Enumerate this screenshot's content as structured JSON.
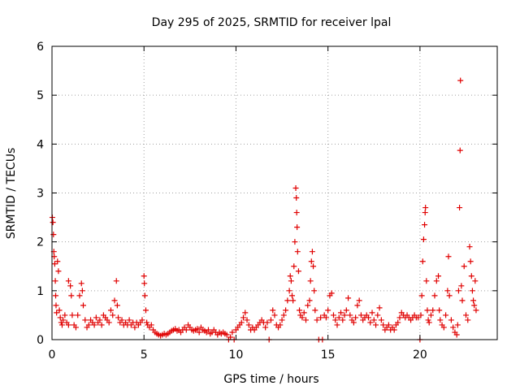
{
  "chart_data": {
    "type": "scatter",
    "title": "Day 295 of 2025, SRMTID for receiver lpal",
    "xlabel": "GPS time / hours",
    "ylabel": "SRMTID / TECUs",
    "xlim": [
      0,
      24.2
    ],
    "ylim": [
      0,
      6
    ],
    "xticks": [
      0,
      5,
      10,
      15,
      20
    ],
    "yticks": [
      0,
      1,
      2,
      3,
      4,
      5,
      6
    ],
    "grid": true,
    "marker": "+",
    "colors": {
      "series": "#e00000",
      "grid": "#a0a0a0",
      "axes": "#000000"
    },
    "series": [
      {
        "name": "SRMTID",
        "points": [
          [
            0.02,
            2.5
          ],
          [
            0.05,
            2.4
          ],
          [
            0.08,
            2.15
          ],
          [
            0.1,
            1.8
          ],
          [
            0.12,
            1.7
          ],
          [
            0.15,
            1.55
          ],
          [
            0.18,
            1.2
          ],
          [
            0.2,
            0.9
          ],
          [
            0.22,
            0.7
          ],
          [
            0.25,
            0.55
          ],
          [
            0.3,
            1.6
          ],
          [
            0.35,
            1.4
          ],
          [
            0.4,
            0.6
          ],
          [
            0.45,
            0.45
          ],
          [
            0.5,
            0.35
          ],
          [
            0.55,
            0.3
          ],
          [
            0.6,
            0.4
          ],
          [
            0.7,
            0.5
          ],
          [
            0.8,
            0.35
          ],
          [
            0.9,
            0.3
          ],
          [
            0.9,
            1.2
          ],
          [
            1.0,
            1.1
          ],
          [
            1.05,
            0.9
          ],
          [
            1.1,
            0.5
          ],
          [
            1.2,
            0.3
          ],
          [
            1.3,
            0.25
          ],
          [
            1.4,
            0.5
          ],
          [
            1.5,
            0.9
          ],
          [
            1.6,
            1.15
          ],
          [
            1.65,
            1.0
          ],
          [
            1.7,
            0.7
          ],
          [
            1.8,
            0.4
          ],
          [
            1.9,
            0.25
          ],
          [
            2.0,
            0.3
          ],
          [
            2.1,
            0.4
          ],
          [
            2.2,
            0.35
          ],
          [
            2.3,
            0.3
          ],
          [
            2.4,
            0.45
          ],
          [
            2.5,
            0.35
          ],
          [
            2.6,
            0.4
          ],
          [
            2.7,
            0.3
          ],
          [
            2.8,
            0.5
          ],
          [
            2.9,
            0.45
          ],
          [
            3.0,
            0.4
          ],
          [
            3.1,
            0.35
          ],
          [
            3.2,
            0.6
          ],
          [
            3.3,
            0.5
          ],
          [
            3.4,
            0.8
          ],
          [
            3.5,
            1.2
          ],
          [
            3.55,
            0.7
          ],
          [
            3.6,
            0.45
          ],
          [
            3.7,
            0.35
          ],
          [
            3.8,
            0.4
          ],
          [
            3.9,
            0.3
          ],
          [
            4.0,
            0.35
          ],
          [
            4.1,
            0.3
          ],
          [
            4.2,
            0.4
          ],
          [
            4.3,
            0.3
          ],
          [
            4.4,
            0.35
          ],
          [
            4.5,
            0.25
          ],
          [
            4.6,
            0.35
          ],
          [
            4.7,
            0.3
          ],
          [
            4.8,
            0.35
          ],
          [
            4.9,
            0.4
          ],
          [
            5.0,
            1.3
          ],
          [
            5.02,
            1.15
          ],
          [
            5.05,
            0.9
          ],
          [
            5.1,
            0.6
          ],
          [
            5.15,
            0.35
          ],
          [
            5.2,
            0.3
          ],
          [
            5.3,
            0.25
          ],
          [
            5.4,
            0.3
          ],
          [
            5.5,
            0.2
          ],
          [
            5.6,
            0.15
          ],
          [
            5.7,
            0.12
          ],
          [
            5.8,
            0.1
          ],
          [
            5.9,
            0.08
          ],
          [
            6.0,
            0.1
          ],
          [
            6.1,
            0.12
          ],
          [
            6.2,
            0.1
          ],
          [
            6.3,
            0.12
          ],
          [
            6.4,
            0.15
          ],
          [
            6.5,
            0.18
          ],
          [
            6.6,
            0.2
          ],
          [
            6.7,
            0.22
          ],
          [
            6.8,
            0.18
          ],
          [
            6.9,
            0.2
          ],
          [
            7.0,
            0.15
          ],
          [
            7.1,
            0.2
          ],
          [
            7.2,
            0.25
          ],
          [
            7.3,
            0.2
          ],
          [
            7.4,
            0.3
          ],
          [
            7.5,
            0.25
          ],
          [
            7.6,
            0.2
          ],
          [
            7.7,
            0.18
          ],
          [
            7.8,
            0.2
          ],
          [
            7.9,
            0.22
          ],
          [
            8.0,
            0.15
          ],
          [
            8.1,
            0.25
          ],
          [
            8.2,
            0.2
          ],
          [
            8.3,
            0.18
          ],
          [
            8.4,
            0.15
          ],
          [
            8.5,
            0.2
          ],
          [
            8.6,
            0.12
          ],
          [
            8.7,
            0.15
          ],
          [
            8.8,
            0.2
          ],
          [
            8.9,
            0.15
          ],
          [
            9.0,
            0.1
          ],
          [
            9.1,
            0.15
          ],
          [
            9.2,
            0.12
          ],
          [
            9.3,
            0.15
          ],
          [
            9.4,
            0.12
          ],
          [
            9.5,
            0.1
          ],
          [
            9.6,
            0.0
          ],
          [
            9.7,
            0.05
          ],
          [
            9.8,
            0.15
          ],
          [
            9.9,
            0.0
          ],
          [
            10.0,
            0.2
          ],
          [
            10.1,
            0.25
          ],
          [
            10.2,
            0.3
          ],
          [
            10.3,
            0.35
          ],
          [
            10.4,
            0.45
          ],
          [
            10.5,
            0.55
          ],
          [
            10.6,
            0.4
          ],
          [
            10.7,
            0.3
          ],
          [
            10.8,
            0.2
          ],
          [
            10.9,
            0.25
          ],
          [
            11.0,
            0.2
          ],
          [
            11.1,
            0.25
          ],
          [
            11.2,
            0.3
          ],
          [
            11.3,
            0.35
          ],
          [
            11.4,
            0.4
          ],
          [
            11.5,
            0.35
          ],
          [
            11.6,
            0.25
          ],
          [
            11.7,
            0.35
          ],
          [
            11.8,
            0.0
          ],
          [
            11.9,
            0.4
          ],
          [
            12.0,
            0.6
          ],
          [
            12.1,
            0.5
          ],
          [
            12.2,
            0.3
          ],
          [
            12.3,
            0.25
          ],
          [
            12.4,
            0.3
          ],
          [
            12.5,
            0.4
          ],
          [
            12.6,
            0.5
          ],
          [
            12.7,
            0.6
          ],
          [
            12.8,
            0.8
          ],
          [
            12.9,
            1.0
          ],
          [
            12.95,
            1.3
          ],
          [
            13.0,
            1.2
          ],
          [
            13.05,
            0.9
          ],
          [
            13.1,
            0.8
          ],
          [
            13.15,
            1.5
          ],
          [
            13.2,
            2.0
          ],
          [
            13.25,
            3.1
          ],
          [
            13.28,
            2.9
          ],
          [
            13.3,
            2.6
          ],
          [
            13.32,
            2.3
          ],
          [
            13.35,
            1.8
          ],
          [
            13.4,
            1.4
          ],
          [
            13.45,
            0.6
          ],
          [
            13.5,
            0.5
          ],
          [
            13.6,
            0.45
          ],
          [
            13.7,
            0.55
          ],
          [
            13.8,
            0.4
          ],
          [
            13.9,
            0.7
          ],
          [
            14.0,
            0.8
          ],
          [
            14.05,
            1.2
          ],
          [
            14.1,
            1.6
          ],
          [
            14.15,
            1.8
          ],
          [
            14.2,
            1.5
          ],
          [
            14.25,
            1.0
          ],
          [
            14.3,
            0.6
          ],
          [
            14.4,
            0.4
          ],
          [
            14.5,
            0.0
          ],
          [
            14.6,
            0.45
          ],
          [
            14.7,
            0.0
          ],
          [
            14.8,
            0.5
          ],
          [
            14.9,
            0.45
          ],
          [
            15.0,
            0.6
          ],
          [
            15.1,
            0.9
          ],
          [
            15.2,
            0.95
          ],
          [
            15.3,
            0.5
          ],
          [
            15.4,
            0.4
          ],
          [
            15.5,
            0.3
          ],
          [
            15.6,
            0.45
          ],
          [
            15.7,
            0.55
          ],
          [
            15.8,
            0.4
          ],
          [
            15.9,
            0.5
          ],
          [
            16.0,
            0.6
          ],
          [
            16.1,
            0.85
          ],
          [
            16.2,
            0.5
          ],
          [
            16.3,
            0.4
          ],
          [
            16.4,
            0.35
          ],
          [
            16.5,
            0.45
          ],
          [
            16.6,
            0.7
          ],
          [
            16.7,
            0.8
          ],
          [
            16.8,
            0.5
          ],
          [
            16.9,
            0.4
          ],
          [
            17.0,
            0.45
          ],
          [
            17.1,
            0.5
          ],
          [
            17.2,
            0.45
          ],
          [
            17.3,
            0.35
          ],
          [
            17.4,
            0.55
          ],
          [
            17.5,
            0.4
          ],
          [
            17.6,
            0.3
          ],
          [
            17.7,
            0.5
          ],
          [
            17.8,
            0.65
          ],
          [
            17.9,
            0.4
          ],
          [
            18.0,
            0.3
          ],
          [
            18.1,
            0.2
          ],
          [
            18.2,
            0.25
          ],
          [
            18.3,
            0.3
          ],
          [
            18.4,
            0.2
          ],
          [
            18.5,
            0.25
          ],
          [
            18.6,
            0.2
          ],
          [
            18.7,
            0.3
          ],
          [
            18.8,
            0.35
          ],
          [
            18.9,
            0.45
          ],
          [
            19.0,
            0.55
          ],
          [
            19.1,
            0.5
          ],
          [
            19.2,
            0.45
          ],
          [
            19.3,
            0.5
          ],
          [
            19.4,
            0.45
          ],
          [
            19.5,
            0.4
          ],
          [
            19.6,
            0.45
          ],
          [
            19.7,
            0.5
          ],
          [
            19.8,
            0.45
          ],
          [
            19.9,
            0.45
          ],
          [
            20.0,
            0.0
          ],
          [
            20.05,
            0.5
          ],
          [
            20.1,
            0.9
          ],
          [
            20.15,
            1.6
          ],
          [
            20.2,
            2.05
          ],
          [
            20.25,
            2.35
          ],
          [
            20.28,
            2.6
          ],
          [
            20.3,
            2.7
          ],
          [
            20.35,
            1.2
          ],
          [
            20.4,
            0.6
          ],
          [
            20.45,
            0.4
          ],
          [
            20.5,
            0.35
          ],
          [
            20.6,
            0.5
          ],
          [
            20.7,
            0.6
          ],
          [
            20.8,
            0.9
          ],
          [
            20.9,
            1.2
          ],
          [
            21.0,
            1.3
          ],
          [
            21.05,
            0.6
          ],
          [
            21.1,
            0.4
          ],
          [
            21.2,
            0.3
          ],
          [
            21.3,
            0.25
          ],
          [
            21.4,
            0.5
          ],
          [
            21.5,
            1.0
          ],
          [
            21.55,
            1.7
          ],
          [
            21.6,
            0.9
          ],
          [
            21.7,
            0.4
          ],
          [
            21.8,
            0.25
          ],
          [
            21.9,
            0.15
          ],
          [
            22.0,
            0.1
          ],
          [
            22.05,
            0.3
          ],
          [
            22.1,
            1.0
          ],
          [
            22.15,
            2.7
          ],
          [
            22.18,
            3.87
          ],
          [
            22.2,
            5.3
          ],
          [
            22.25,
            1.1
          ],
          [
            22.3,
            0.8
          ],
          [
            22.4,
            1.5
          ],
          [
            22.5,
            0.5
          ],
          [
            22.6,
            0.4
          ],
          [
            22.7,
            1.9
          ],
          [
            22.75,
            1.6
          ],
          [
            22.8,
            1.3
          ],
          [
            22.85,
            1.0
          ],
          [
            22.9,
            0.8
          ],
          [
            22.95,
            0.7
          ],
          [
            23.0,
            1.2
          ],
          [
            23.05,
            0.6
          ]
        ]
      }
    ]
  }
}
